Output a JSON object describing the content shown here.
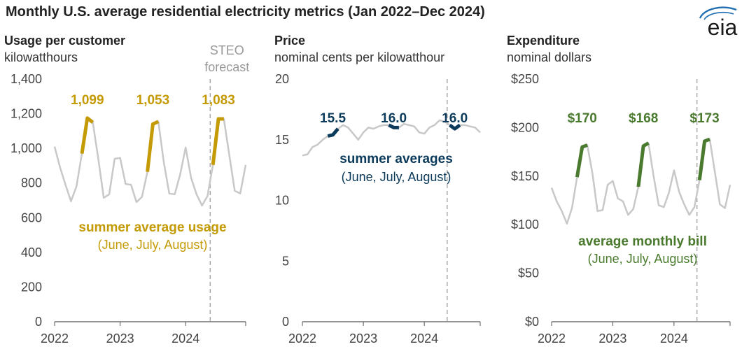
{
  "title": "Monthly U.S. average residential electricity metrics (Jan 2022–Dec 2024)",
  "logo": {
    "text": "eia",
    "icon": "eia-logo-icon"
  },
  "colors": {
    "usage": "#c49a05",
    "price": "#0b3a5a",
    "expenditure": "#4a7a2e",
    "history": "#c8c8c8",
    "axis": "#555555",
    "forecast_line": "#aaaaaa",
    "forecast_text": "#999999"
  },
  "chart_data": [
    {
      "type": "line",
      "title": "Usage per customer",
      "unit": "kilowatthours",
      "x_tick_labels": [
        "2022",
        "2023",
        "2024"
      ],
      "x": [
        "2022-01",
        "2022-02",
        "2022-03",
        "2022-04",
        "2022-05",
        "2022-06",
        "2022-07",
        "2022-08",
        "2022-09",
        "2022-10",
        "2022-11",
        "2022-12",
        "2023-01",
        "2023-02",
        "2023-03",
        "2023-04",
        "2023-05",
        "2023-06",
        "2023-07",
        "2023-08",
        "2023-09",
        "2023-10",
        "2023-11",
        "2023-12",
        "2024-01",
        "2024-02",
        "2024-03",
        "2024-04",
        "2024-05",
        "2024-06",
        "2024-07",
        "2024-08",
        "2024-09",
        "2024-10",
        "2024-11",
        "2024-12"
      ],
      "values": [
        1010,
        890,
        790,
        695,
        780,
        970,
        1175,
        1150,
        940,
        715,
        735,
        940,
        945,
        795,
        790,
        690,
        720,
        865,
        1140,
        1155,
        920,
        740,
        735,
        850,
        1005,
        830,
        735,
        670,
        725,
        905,
        1170,
        1170,
        960,
        755,
        740,
        905
      ],
      "highlight_ranges": [
        [
          5,
          7
        ],
        [
          17,
          19
        ],
        [
          29,
          31
        ]
      ],
      "annotations": [
        "1,099",
        "1,053",
        "1,083"
      ],
      "annotation_indices": [
        6,
        18,
        30
      ],
      "y_ticks": [
        0,
        200,
        400,
        600,
        800,
        1000,
        1200,
        1400
      ],
      "y_tick_labels": [
        "0",
        "200",
        "400",
        "600",
        "800",
        "1,000",
        "1,200",
        "1,400"
      ],
      "ylim": [
        0,
        1400
      ],
      "legend_label": "summer average usage",
      "legend_sublabel": "(June, July, August)",
      "forecast_label": "STEO forecast",
      "forecast_start_index": 29
    },
    {
      "type": "line",
      "title": "Price",
      "unit": "nominal cents per kilowatthour",
      "x_tick_labels": [
        "2022",
        "2023",
        "2024"
      ],
      "x": [
        "2022-01",
        "2022-02",
        "2022-03",
        "2022-04",
        "2022-05",
        "2022-06",
        "2022-07",
        "2022-08",
        "2022-09",
        "2022-10",
        "2022-11",
        "2022-12",
        "2023-01",
        "2023-02",
        "2023-03",
        "2023-04",
        "2023-05",
        "2023-06",
        "2023-07",
        "2023-08",
        "2023-09",
        "2023-10",
        "2023-11",
        "2023-12",
        "2024-01",
        "2024-02",
        "2024-03",
        "2024-04",
        "2024-05",
        "2024-06",
        "2024-07",
        "2024-08",
        "2024-09",
        "2024-10",
        "2024-11",
        "2024-12"
      ],
      "values": [
        13.7,
        13.8,
        14.4,
        14.6,
        15.0,
        15.3,
        15.4,
        15.9,
        16.2,
        16.0,
        15.5,
        15.0,
        15.6,
        16.0,
        15.9,
        16.1,
        16.2,
        16.2,
        16.0,
        16.0,
        16.3,
        16.2,
        16.1,
        15.6,
        15.5,
        16.0,
        16.2,
        16.6,
        16.5,
        16.2,
        15.9,
        16.2,
        16.2,
        16.1,
        16.0,
        15.6
      ],
      "highlight_ranges": [
        [
          5,
          7
        ],
        [
          17,
          19
        ],
        [
          29,
          31
        ]
      ],
      "annotations": [
        "15.5",
        "16.0",
        "16.0"
      ],
      "annotation_indices": [
        6,
        18,
        30
      ],
      "y_ticks": [
        0,
        5,
        10,
        15,
        20
      ],
      "y_tick_labels": [
        "0",
        "5",
        "10",
        "15",
        "20"
      ],
      "ylim": [
        0,
        20
      ],
      "legend_label": "summer averages",
      "legend_sublabel": "(June, July, August)",
      "forecast_start_index": 29
    },
    {
      "type": "line",
      "title": "Expenditure",
      "unit": "nominal dollars",
      "x_tick_labels": [
        "2022",
        "2023",
        "2024"
      ],
      "x": [
        "2022-01",
        "2022-02",
        "2022-03",
        "2022-04",
        "2022-05",
        "2022-06",
        "2022-07",
        "2022-08",
        "2022-09",
        "2022-10",
        "2022-11",
        "2022-12",
        "2023-01",
        "2023-02",
        "2023-03",
        "2023-04",
        "2023-05",
        "2023-06",
        "2023-07",
        "2023-08",
        "2023-09",
        "2023-10",
        "2023-11",
        "2023-12",
        "2024-01",
        "2024-02",
        "2024-03",
        "2024-04",
        "2024-05",
        "2024-06",
        "2024-07",
        "2024-08",
        "2024-09",
        "2024-10",
        "2024-11",
        "2024-12"
      ],
      "values": [
        138,
        124,
        114,
        101,
        117,
        149,
        180,
        182,
        153,
        114,
        115,
        141,
        145,
        127,
        124,
        110,
        116,
        139,
        181,
        184,
        150,
        120,
        118,
        133,
        156,
        134,
        121,
        110,
        118,
        146,
        186,
        188,
        155,
        121,
        117,
        141
      ],
      "highlight_ranges": [
        [
          5,
          7
        ],
        [
          17,
          19
        ],
        [
          29,
          31
        ]
      ],
      "annotations": [
        "$170",
        "$168",
        "$173"
      ],
      "annotation_indices": [
        6,
        18,
        30
      ],
      "y_ticks": [
        0,
        50,
        100,
        150,
        200,
        250
      ],
      "y_tick_labels": [
        "$0",
        "$50",
        "$100",
        "$150",
        "$200",
        "$250"
      ],
      "ylim": [
        0,
        250
      ],
      "legend_label": "average monthly bill",
      "legend_sublabel": "(June, July, August)",
      "forecast_start_index": 29
    }
  ]
}
